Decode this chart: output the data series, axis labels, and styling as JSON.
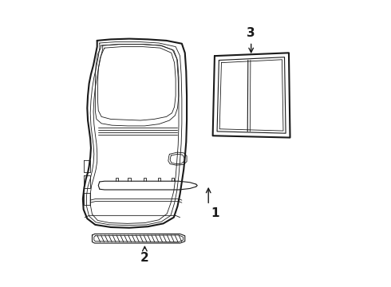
{
  "background_color": "#ffffff",
  "line_color": "#1a1a1a",
  "label_1": "1",
  "label_2": "2",
  "label_3": "3",
  "lw_outer": 1.5,
  "lw_inner": 0.8,
  "lw_thin": 0.6
}
